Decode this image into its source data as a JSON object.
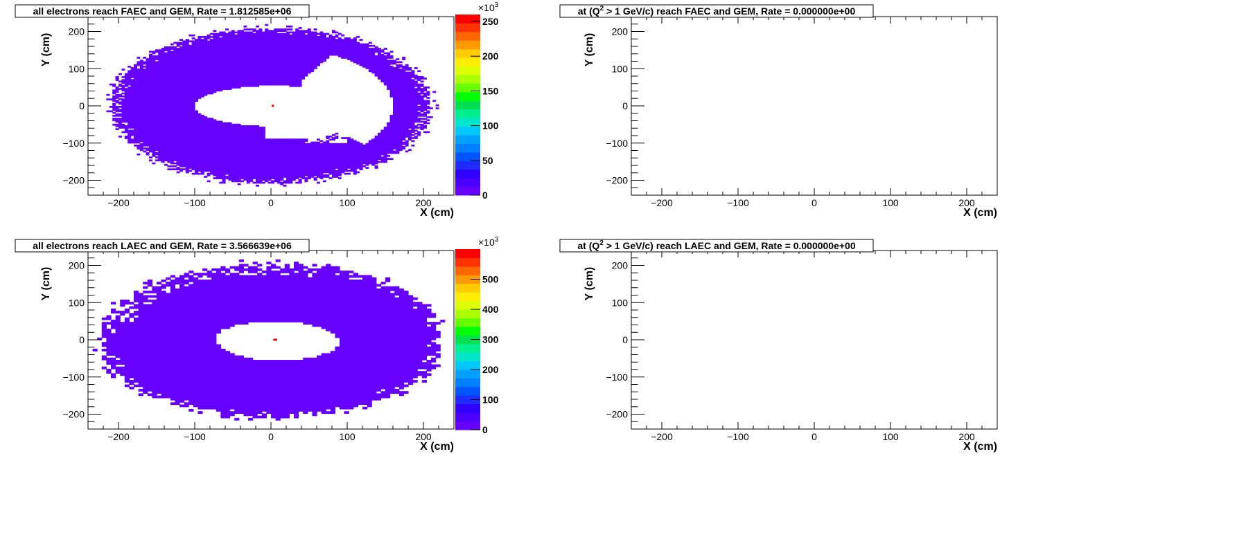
{
  "chart_data": [
    {
      "type": "heatmap",
      "title": "all electrons reach FAEC and GEM,  Rate =  1.812585e+06",
      "xlabel": "X (cm)",
      "ylabel": "Y (cm)",
      "xlim": [
        -240,
        240
      ],
      "ylim": [
        -240,
        240
      ],
      "x_ticks": [
        "−200",
        "−100",
        "0",
        "100",
        "200"
      ],
      "y_ticks": [
        "−200",
        "−100",
        "0",
        "100",
        "200"
      ],
      "colorbar": {
        "min": 0,
        "max": 260,
        "ticks": [
          "0",
          "50",
          "100",
          "150",
          "200",
          "250"
        ],
        "exponent_label": "×10",
        "exponent": "3"
      },
      "rate": 1812585,
      "distribution": {
        "shape": "annulus",
        "outer_radius_x": 210,
        "outer_radius_y": 210,
        "inner_radius_x": 105,
        "inner_radius_y": 55,
        "inner_center": [
          5,
          0
        ],
        "notch_angle_deg": [
          -40,
          60
        ],
        "notch_radius": 180,
        "dominant_value": 5000,
        "hot_spot": {
          "x": 2,
          "y": 2,
          "value": 255000
        }
      }
    },
    {
      "type": "heatmap",
      "title": "at (Q",
      "title_superscript": "2",
      "title_rest": " > 1 GeV/c) reach FAEC and GEM,  Rate =  0.000000e+00",
      "xlabel": "X (cm)",
      "ylabel": "Y (cm)",
      "xlim": [
        -240,
        240
      ],
      "ylim": [
        -240,
        240
      ],
      "x_ticks": [
        "−200",
        "−100",
        "0",
        "100",
        "200"
      ],
      "y_ticks": [
        "−200",
        "−100",
        "0",
        "100",
        "200"
      ],
      "rate": 0,
      "empty": true
    },
    {
      "type": "heatmap",
      "title": "all electrons reach LAEC and GEM,  Rate =  3.566639e+06",
      "xlabel": "X (cm)",
      "ylabel": "Y (cm)",
      "xlim": [
        -240,
        240
      ],
      "ylim": [
        -240,
        240
      ],
      "x_ticks": [
        "−200",
        "−100",
        "0",
        "100",
        "200"
      ],
      "y_ticks": [
        "−200",
        "−100",
        "0",
        "100",
        "200"
      ],
      "colorbar": {
        "min": 0,
        "max": 600,
        "ticks": [
          "0",
          "100",
          "200",
          "300",
          "400",
          "500"
        ],
        "exponent_label": "×10",
        "exponent": "3"
      },
      "rate": 3566639,
      "distribution": {
        "shape": "annulus",
        "outer_radius_x": 225,
        "outer_radius_y": 210,
        "inner_radius_x": 78,
        "inner_radius_y": 45,
        "inner_center": [
          5,
          5
        ],
        "dominant_value": 8000,
        "hot_spot": {
          "x": 4,
          "y": 2,
          "value": 580000
        }
      }
    },
    {
      "type": "heatmap",
      "title": "at (Q",
      "title_superscript": "2",
      "title_rest": " > 1 GeV/c) reach LAEC and GEM,  Rate =  0.000000e+00",
      "xlabel": "X (cm)",
      "ylabel": "Y (cm)",
      "xlim": [
        -240,
        240
      ],
      "ylim": [
        -240,
        240
      ],
      "x_ticks": [
        "−200",
        "−100",
        "0",
        "100",
        "200"
      ],
      "y_ticks": [
        "−200",
        "−100",
        "0",
        "100",
        "200"
      ],
      "rate": 0,
      "empty": true
    }
  ],
  "palette": [
    "#6600ff",
    "#4b00ff",
    "#2f00ff",
    "#1f2bff",
    "#0055ff",
    "#0080ff",
    "#00a0ff",
    "#00c8ff",
    "#00e6c8",
    "#00f090",
    "#00e050",
    "#00ff00",
    "#66ff00",
    "#aaff00",
    "#ddff00",
    "#ffee00",
    "#ffcc00",
    "#ff9900",
    "#ff6600",
    "#ff3300",
    "#ff0000"
  ]
}
